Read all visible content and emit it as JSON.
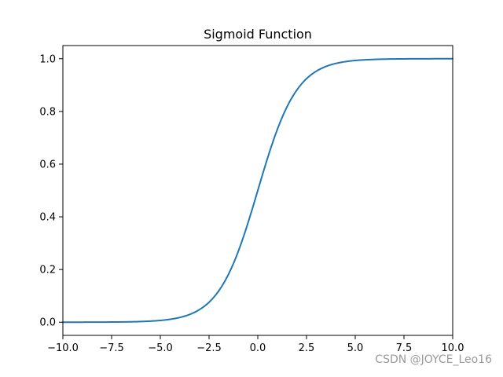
{
  "chart_data": {
    "type": "line",
    "title": "Sigmoid Function",
    "xlabel": "",
    "ylabel": "",
    "xlim": [
      -10,
      10
    ],
    "ylim": [
      -0.05,
      1.05
    ],
    "grid": false,
    "x_ticks": [
      -10,
      -7.5,
      -5,
      -2.5,
      0,
      2.5,
      5,
      7.5,
      10
    ],
    "x_tick_labels": [
      "−10.0",
      "−7.5",
      "−5.0",
      "−2.5",
      "0.0",
      "2.5",
      "5.0",
      "7.5",
      "10.0"
    ],
    "y_ticks": [
      0,
      0.2,
      0.4,
      0.6,
      0.8,
      1.0
    ],
    "y_tick_labels": [
      "0.0",
      "0.2",
      "0.4",
      "0.6",
      "0.8",
      "1.0"
    ],
    "series": [
      {
        "color": "#1f77b4",
        "x": [
          -10,
          -9,
          -8,
          -7,
          -6,
          -5,
          -4.5,
          -4,
          -3.5,
          -3,
          -2.5,
          -2,
          -1.5,
          -1,
          -0.5,
          0,
          0.5,
          1,
          1.5,
          2,
          2.5,
          3,
          3.5,
          4,
          4.5,
          5,
          6,
          7,
          8,
          9,
          10
        ],
        "y": [
          4.54e-05,
          0.000123,
          0.000335,
          0.000911,
          0.00247,
          0.00669,
          0.011,
          0.018,
          0.0293,
          0.0474,
          0.0759,
          0.1192,
          0.1824,
          0.2689,
          0.3775,
          0.5,
          0.6225,
          0.7311,
          0.8176,
          0.8808,
          0.9241,
          0.9526,
          0.9707,
          0.982,
          0.989,
          0.99331,
          0.99753,
          0.99909,
          0.999665,
          0.999877,
          0.9999546
        ]
      }
    ]
  },
  "watermark": {
    "text": "CSDN @JOYCE_Leo16"
  }
}
